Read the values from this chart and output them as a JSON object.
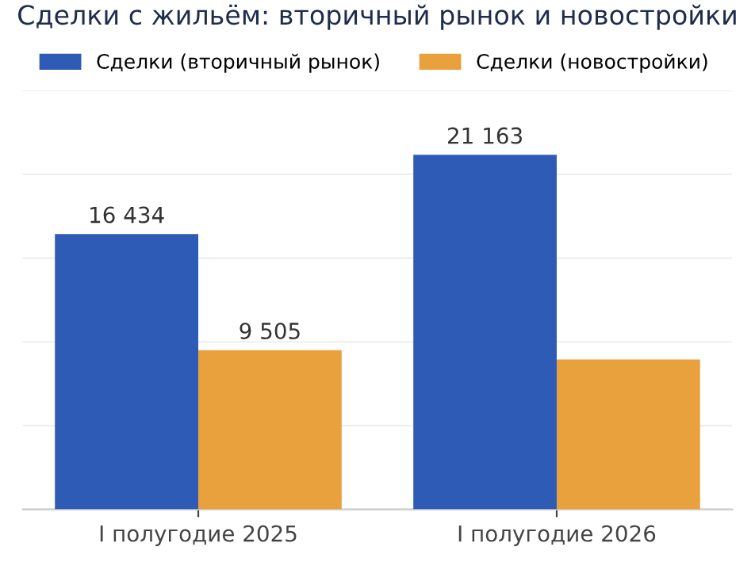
{
  "chart_data": {
    "type": "bar",
    "title": "Сделки с жильём: вторичный рынок и новостройки",
    "categories": [
      "I полугодие 2025",
      "I полугодие 2026"
    ],
    "series": [
      {
        "name": "Сделки (вторичный рынок)",
        "color": "#2e5bb5",
        "values": [
          16434,
          21163
        ],
        "value_labels": [
          "16 434",
          "21 163"
        ]
      },
      {
        "name": "Сделки (новостройки)",
        "color": "#e8a13c",
        "values": [
          9505,
          8950
        ],
        "value_labels": [
          "9 505",
          null
        ]
      }
    ],
    "ylim": [
      0,
      25000
    ],
    "yticks": [
      {
        "value": 0,
        "label": null
      },
      {
        "value": 5000,
        "label": null
      },
      {
        "value": 10000,
        "label": null
      },
      {
        "value": 15000,
        "label": null
      },
      {
        "value": 20000,
        "label": null
      },
      {
        "value": 25000,
        "label": null
      }
    ],
    "grid": "y",
    "legend": "top left",
    "tick_labels": "x"
  }
}
